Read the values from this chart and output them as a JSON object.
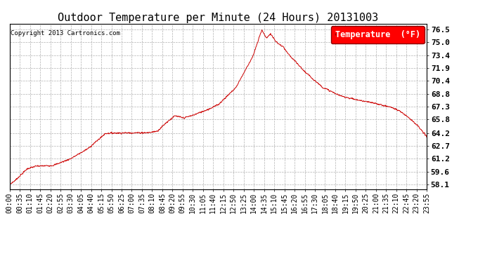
{
  "title": "Outdoor Temperature per Minute (24 Hours) 20131003",
  "copyright": "Copyright 2013 Cartronics.com",
  "legend_label": "Temperature  (°F)",
  "line_color": "#cc0000",
  "bg_color": "#ffffff",
  "plot_bg_color": "#ffffff",
  "grid_color": "#b0b0b0",
  "yticks": [
    58.1,
    59.6,
    61.2,
    62.7,
    64.2,
    65.8,
    67.3,
    68.8,
    70.4,
    71.9,
    73.4,
    75.0,
    76.5
  ],
  "ylim": [
    57.5,
    77.2
  ],
  "xtick_labels": [
    "00:00",
    "00:35",
    "01:10",
    "01:45",
    "02:20",
    "02:55",
    "03:30",
    "04:05",
    "04:40",
    "05:15",
    "05:50",
    "06:25",
    "07:00",
    "07:35",
    "08:10",
    "08:45",
    "09:20",
    "09:55",
    "10:30",
    "11:05",
    "11:40",
    "12:15",
    "12:50",
    "13:25",
    "14:00",
    "14:35",
    "15:10",
    "15:45",
    "16:20",
    "16:55",
    "17:30",
    "18:05",
    "18:40",
    "19:15",
    "19:50",
    "20:25",
    "21:00",
    "21:35",
    "22:10",
    "22:45",
    "23:20",
    "23:55"
  ],
  "title_fontsize": 11,
  "axis_fontsize": 7,
  "legend_fontsize": 8.5
}
